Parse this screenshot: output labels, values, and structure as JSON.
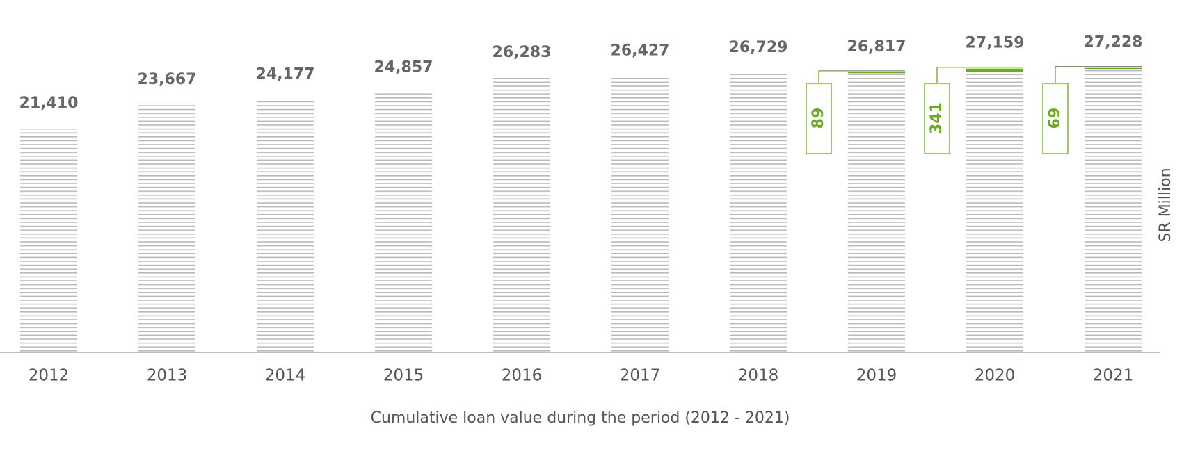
{
  "chart_data": {
    "type": "bar",
    "x_label": "Cumulative loan value during the period (2012 - 2021)",
    "y_label": "SR Million",
    "categories": [
      "2012",
      "2013",
      "2014",
      "2015",
      "2016",
      "2017",
      "2018",
      "2019",
      "2020",
      "2021"
    ],
    "values": [
      21410,
      23667,
      24177,
      24857,
      26283,
      26427,
      26729,
      26817,
      27159,
      27228
    ],
    "value_labels": [
      "21,410",
      "23,667",
      "24,177",
      "24,857",
      "26,283",
      "26,427",
      "26,729",
      "26,817",
      "27,159",
      "27,228"
    ],
    "color": "#b9b9b9",
    "increments": {
      "color": "#6aaa1e",
      "values": [
        null,
        null,
        null,
        null,
        null,
        null,
        null,
        89,
        341,
        69
      ]
    },
    "ylim": [
      0,
      30000
    ]
  }
}
